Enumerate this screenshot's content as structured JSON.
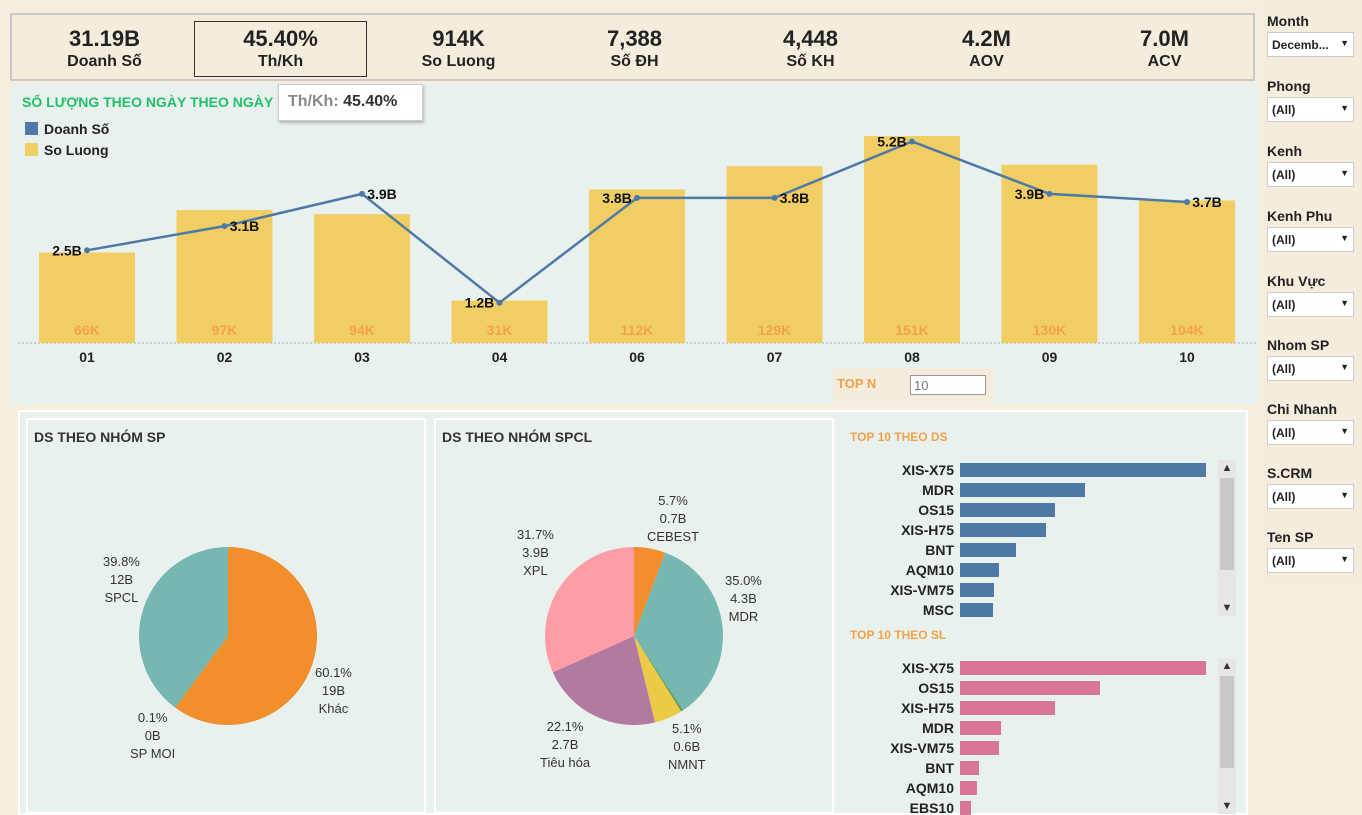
{
  "kpis": [
    {
      "value": "31.19B",
      "label": "Doanh Số"
    },
    {
      "value": "45.40%",
      "label": "Th/Kh"
    },
    {
      "value": "914K",
      "label": "So Luong"
    },
    {
      "value": "7,388",
      "label": "Số ĐH"
    },
    {
      "value": "4,448",
      "label": "Số KH"
    },
    {
      "value": "4.2M",
      "label": "AOV"
    },
    {
      "value": "7.0M",
      "label": "ACV"
    }
  ],
  "tooltip": {
    "key": "Th/Kh:",
    "value": "45.40%"
  },
  "main_chart": {
    "title": "SỐ LƯỢNG THEO NGÀY THEO NGÀY",
    "legend": [
      {
        "label": "Doanh Số",
        "color": "#4e79a7"
      },
      {
        "label": "So Luong",
        "color": "#f1ce63"
      }
    ]
  },
  "chart_data": {
    "type": "bar",
    "title": "SỐ LƯỢNG THEO NGÀY THEO NGÀY",
    "categories": [
      "01",
      "02",
      "03",
      "04",
      "06",
      "07",
      "08",
      "09",
      "10"
    ],
    "series": [
      {
        "name": "So Luong",
        "type": "bar",
        "values": [
          66,
          97,
          94,
          31,
          112,
          129,
          151,
          130,
          104
        ],
        "labels": [
          "66K",
          "97K",
          "94K",
          "31K",
          "112K",
          "129K",
          "151K",
          "130K",
          "104K"
        ],
        "color": "#f1ce63"
      },
      {
        "name": "Doanh Số",
        "type": "line",
        "values": [
          2.5,
          3.1,
          3.9,
          1.2,
          3.8,
          3.8,
          5.2,
          3.9,
          3.7
        ],
        "labels": [
          "2.5B",
          "3.1B",
          "3.9B",
          "1.2B",
          "3.8B",
          "3.8B",
          "5.2B",
          "3.9B",
          "3.7B"
        ],
        "color": "#4e79a7"
      }
    ]
  },
  "topn": {
    "label": "TOP N",
    "value": "10"
  },
  "pie_sp": {
    "title": "DS THEO NHÓM SP",
    "slices": [
      {
        "name": "Khác",
        "pct": 60.1,
        "pct_label": "60.1%",
        "value": "19B",
        "color": "#f28e2b"
      },
      {
        "name": "SP MOI",
        "pct": 0.1,
        "pct_label": "0.1%",
        "value": "0B",
        "color": "#59a14f"
      },
      {
        "name": "SPCL",
        "pct": 39.8,
        "pct_label": "39.8%",
        "value": "12B",
        "color": "#76b7b2"
      }
    ]
  },
  "pie_spcl": {
    "title": "DS THEO NHÓM SPCL",
    "slices": [
      {
        "name": "CEBEST",
        "pct": 5.7,
        "pct_label": "5.7%",
        "value": "0.7B",
        "color": "#f28e2b"
      },
      {
        "name": "MDR",
        "pct": 35.0,
        "pct_label": "35.0%",
        "value": "4.3B",
        "color": "#76b7b2"
      },
      {
        "name": "",
        "pct": 0.4,
        "pct_label": "",
        "value": "",
        "color": "#59a14f"
      },
      {
        "name": "NMNT",
        "pct": 5.1,
        "pct_label": "5.1%",
        "value": "0.6B",
        "color": "#edc948"
      },
      {
        "name": "Tiêu hóa",
        "pct": 22.1,
        "pct_label": "22.1%",
        "value": "2.7B",
        "color": "#b07aa1"
      },
      {
        "name": "XPL",
        "pct": 31.7,
        "pct_label": "31.7%",
        "value": "3.9B",
        "color": "#ff9da7"
      }
    ]
  },
  "top10_ds": {
    "title": "TOP 10 THEO DS",
    "color": "#4e79a7",
    "items": [
      {
        "name": "XIS-X75",
        "value": 1.0
      },
      {
        "name": "MDR",
        "value": 0.51
      },
      {
        "name": "OS15",
        "value": 0.385
      },
      {
        "name": "XIS-H75",
        "value": 0.35
      },
      {
        "name": "BNT",
        "value": 0.228
      },
      {
        "name": "AQM10",
        "value": 0.157
      },
      {
        "name": "XIS-VM75",
        "value": 0.137
      },
      {
        "name": "MSC",
        "value": 0.135
      }
    ]
  },
  "top10_sl": {
    "title": "TOP 10 THEO SL",
    "color": "#d97597",
    "items": [
      {
        "name": "XIS-X75",
        "value": 1.0
      },
      {
        "name": "OS15",
        "value": 0.57
      },
      {
        "name": "XIS-H75",
        "value": 0.387
      },
      {
        "name": "MDR",
        "value": 0.166
      },
      {
        "name": "XIS-VM75",
        "value": 0.159
      },
      {
        "name": "BNT",
        "value": 0.076
      },
      {
        "name": "AQM10",
        "value": 0.07
      },
      {
        "name": "EBS10",
        "value": 0.045
      }
    ]
  },
  "filters": [
    {
      "label": "Month",
      "value": "Decemb..."
    },
    {
      "label": "Phong",
      "value": "(All)"
    },
    {
      "label": "Kenh",
      "value": "(All)"
    },
    {
      "label": "Kenh Phu",
      "value": "(All)"
    },
    {
      "label": "Khu Vực",
      "value": "(All)"
    },
    {
      "label": "Nhom SP",
      "value": "(All)"
    },
    {
      "label": "Chi Nhanh",
      "value": "(All)"
    },
    {
      "label": "S.CRM",
      "value": "(All)"
    },
    {
      "label": "Ten SP",
      "value": "(All)"
    }
  ]
}
